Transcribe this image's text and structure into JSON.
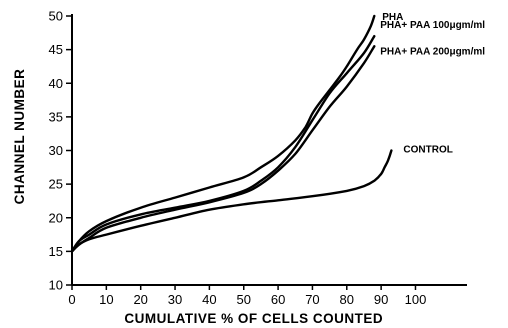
{
  "chart_data": {
    "type": "line",
    "xlabel": "CUMULATIVE % OF CELLS COUNTED",
    "ylabel": "CHANNEL NUMBER",
    "xlim": [
      0,
      115
    ],
    "ylim": [
      10,
      50
    ],
    "xticks": [
      0,
      10,
      20,
      30,
      40,
      50,
      60,
      70,
      80,
      90,
      100
    ],
    "yticks": [
      10,
      15,
      20,
      25,
      30,
      35,
      40,
      45,
      50
    ],
    "grid": false,
    "legend": "labels at line ends",
    "series": [
      {
        "name": "PHA",
        "x": [
          0,
          2,
          5,
          10,
          20,
          30,
          40,
          50,
          55,
          60,
          65,
          68,
          70,
          72,
          75,
          78,
          80,
          83,
          85,
          87,
          88
        ],
        "y": [
          15,
          16.5,
          18,
          19.5,
          21.5,
          23,
          24.5,
          26,
          27.5,
          29.2,
          31.5,
          33.5,
          35.5,
          37,
          39,
          41,
          42.5,
          45,
          46.5,
          48.5,
          50
        ]
      },
      {
        "name": "PHA+ PAA 100μgm/ml",
        "x": [
          0,
          2,
          5,
          10,
          20,
          30,
          40,
          50,
          55,
          60,
          65,
          70,
          75,
          80,
          85,
          88
        ],
        "y": [
          15,
          16.5,
          17.5,
          19,
          20.5,
          21.5,
          22.5,
          24,
          25.5,
          27.5,
          30.5,
          34.5,
          38.5,
          41.5,
          44.5,
          47
        ]
      },
      {
        "name": "PHA+ PAA 200μgm/ml",
        "x": [
          0,
          2,
          5,
          10,
          20,
          30,
          40,
          50,
          55,
          60,
          65,
          70,
          75,
          80,
          85,
          88
        ],
        "y": [
          15,
          16,
          17,
          18.5,
          20,
          21.2,
          22.3,
          23.7,
          25,
          27,
          29.5,
          33,
          36.5,
          39.5,
          43,
          45.5
        ]
      },
      {
        "name": "CONTROL",
        "x": [
          0,
          2,
          5,
          10,
          20,
          30,
          40,
          50,
          60,
          70,
          80,
          85,
          88,
          90,
          91,
          92,
          93
        ],
        "y": [
          15,
          16,
          16.8,
          17.5,
          18.8,
          20,
          21.2,
          22,
          22.6,
          23.2,
          24,
          24.7,
          25.5,
          26.5,
          27.5,
          28.5,
          30
        ]
      }
    ]
  }
}
